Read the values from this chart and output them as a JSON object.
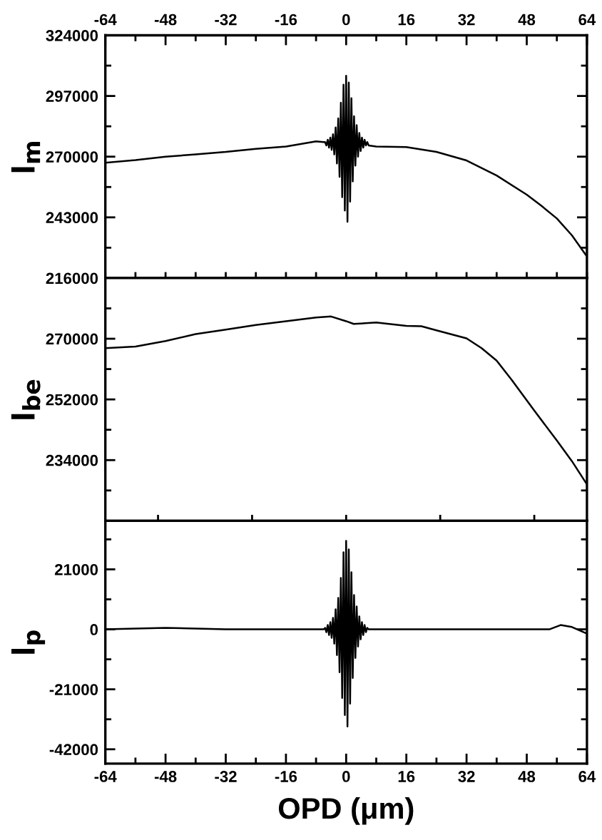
{
  "chart_data": [
    {
      "type": "line",
      "ylabel": "I$_{m}$",
      "xlim": [
        -64,
        64
      ],
      "ylim": [
        216000,
        324000
      ],
      "tick_labels": "y",
      "xticks": [
        {
          "value": -64,
          "label": null
        },
        {
          "value": -56,
          "label": null
        },
        {
          "value": -48,
          "label": null
        },
        {
          "value": -40,
          "label": null
        },
        {
          "value": -32,
          "label": null
        },
        {
          "value": -24,
          "label": null
        },
        {
          "value": -16,
          "label": null
        },
        {
          "value": -8,
          "label": null
        },
        {
          "value": 0,
          "label": null
        },
        {
          "value": 8,
          "label": null
        },
        {
          "value": 16,
          "label": null
        },
        {
          "value": 24,
          "label": null
        },
        {
          "value": 32,
          "label": null
        },
        {
          "value": 40,
          "label": null
        },
        {
          "value": 48,
          "label": null
        },
        {
          "value": 56,
          "label": null
        },
        {
          "value": 64,
          "label": null
        }
      ],
      "x2lim": [
        -64,
        64
      ],
      "x2ticks": [
        -64,
        {
          "value": -56,
          "label": null
        },
        -48,
        {
          "value": -40,
          "label": null
        },
        -32,
        {
          "value": -24,
          "label": null
        },
        -16,
        {
          "value": -8,
          "label": null
        },
        0,
        {
          "value": 8,
          "label": null
        },
        16,
        {
          "value": 24,
          "label": null
        },
        32,
        {
          "value": 40,
          "label": null
        },
        48,
        {
          "value": 56,
          "label": null
        },
        64
      ],
      "yticks": [
        216000,
        {
          "value": 229500,
          "label": null
        },
        243000,
        {
          "value": 256500,
          "label": null
        },
        270000,
        {
          "value": 283500,
          "label": null
        },
        297000,
        {
          "value": 310500,
          "label": null
        },
        324000
      ],
      "series": [
        {
          "color": "#000000",
          "x": [
            -64,
            -56,
            -48,
            -40,
            -32,
            -24,
            -16,
            -8,
            -6,
            -5.6,
            -5.25,
            -4.9,
            -4.55,
            -4.2,
            -3.85,
            -3.5,
            -3.15,
            -2.8,
            -2.45,
            -2.1,
            -1.75,
            -1.4,
            -1.05,
            -0.7,
            -0.35,
            0,
            0.35,
            0.7,
            1.05,
            1.4,
            1.75,
            2.1,
            2.45,
            2.8,
            3.15,
            3.5,
            3.85,
            4.2,
            4.55,
            4.9,
            5.25,
            5.6,
            6,
            8,
            16,
            24,
            32,
            40,
            48,
            52,
            56,
            60,
            64
          ],
          "values": [
            267300,
            268500,
            270000,
            271000,
            272100,
            273500,
            274500,
            276800,
            276500,
            276500,
            275000,
            277500,
            274000,
            278500,
            273000,
            280000,
            271000,
            283000,
            267000,
            287000,
            261000,
            294000,
            252000,
            302000,
            246000,
            306000,
            241000,
            303000,
            250000,
            296000,
            259000,
            288000,
            266000,
            284000,
            270000,
            280500,
            272500,
            278500,
            274000,
            277500,
            275000,
            276500,
            275000,
            274500,
            274300,
            272100,
            268300,
            261600,
            253100,
            248000,
            242500,
            235000,
            225600
          ]
        }
      ]
    },
    {
      "type": "line",
      "ylabel": "I$_{be}$",
      "xlim": [
        -64,
        64
      ],
      "ylim": [
        216000,
        288000
      ],
      "tick_labels": "y",
      "xticks": [
        {
          "value": -50,
          "label": null
        },
        {
          "value": -25,
          "label": null
        },
        {
          "value": 0,
          "label": null
        },
        {
          "value": 25,
          "label": null
        },
        {
          "value": 50,
          "label": null
        }
      ],
      "yticks": [
        {
          "value": 225000,
          "label": null
        },
        234000,
        {
          "value": 243000,
          "label": null
        },
        252000,
        {
          "value": 261000,
          "label": null
        },
        270000,
        {
          "value": 279000,
          "label": null
        }
      ],
      "series": [
        {
          "color": "#000000",
          "x": [
            -64,
            -56,
            -48,
            -40,
            -32,
            -24,
            -16,
            -8,
            -4,
            0,
            2,
            8,
            16,
            20,
            24,
            32,
            36,
            40,
            44,
            50,
            56,
            60,
            64
          ],
          "values": [
            267200,
            267700,
            269300,
            271400,
            272700,
            274100,
            275200,
            276300,
            276600,
            275200,
            274400,
            274800,
            273800,
            273700,
            272500,
            270100,
            267200,
            263500,
            257800,
            248700,
            239800,
            233700,
            226800
          ]
        }
      ]
    },
    {
      "type": "line",
      "ylabel": "I$_{p}$",
      "xlabel": "OPD (μm)",
      "xlim": [
        -64,
        64
      ],
      "ylim": [
        -47000,
        38000
      ],
      "xticks": [
        -64,
        {
          "value": -56,
          "label": null
        },
        -48,
        {
          "value": -40,
          "label": null
        },
        -32,
        {
          "value": -24,
          "label": null
        },
        -16,
        {
          "value": -8,
          "label": null
        },
        0,
        {
          "value": 8,
          "label": null
        },
        16,
        {
          "value": 24,
          "label": null
        },
        32,
        {
          "value": 40,
          "label": null
        },
        48,
        {
          "value": 56,
          "label": null
        },
        64
      ],
      "yticks": [
        -42000,
        {
          "value": -31500,
          "label": null
        },
        -21000,
        {
          "value": -10500,
          "label": null
        },
        0,
        {
          "value": 10500,
          "label": null
        },
        21000,
        {
          "value": 31500,
          "label": null
        }
      ],
      "series": [
        {
          "color": "#000000",
          "x": [
            -64,
            -48,
            -32,
            -16,
            -6,
            -5.6,
            -5.25,
            -4.9,
            -4.55,
            -4.2,
            -3.85,
            -3.5,
            -3.15,
            -2.8,
            -2.45,
            -2.1,
            -1.75,
            -1.4,
            -1.05,
            -0.7,
            -0.35,
            0,
            0.35,
            0.7,
            1.05,
            1.4,
            1.75,
            2.1,
            2.45,
            2.8,
            3.15,
            3.5,
            3.85,
            4.2,
            4.55,
            4.9,
            5.25,
            5.6,
            6,
            16,
            32,
            48,
            54,
            57,
            60,
            64
          ],
          "values": [
            0,
            500,
            0,
            0,
            0,
            500,
            -1000,
            1500,
            -2000,
            2500,
            -3000,
            4000,
            -5000,
            7000,
            -9000,
            11000,
            -15000,
            18000,
            -24000,
            27000,
            -30000,
            31000,
            -34000,
            28000,
            -26000,
            20000,
            -17000,
            12000,
            -10000,
            8000,
            -6000,
            4500,
            -3500,
            2500,
            -2000,
            1500,
            -1000,
            500,
            0,
            0,
            0,
            0,
            0,
            1500,
            800,
            -1500
          ]
        }
      ]
    }
  ]
}
